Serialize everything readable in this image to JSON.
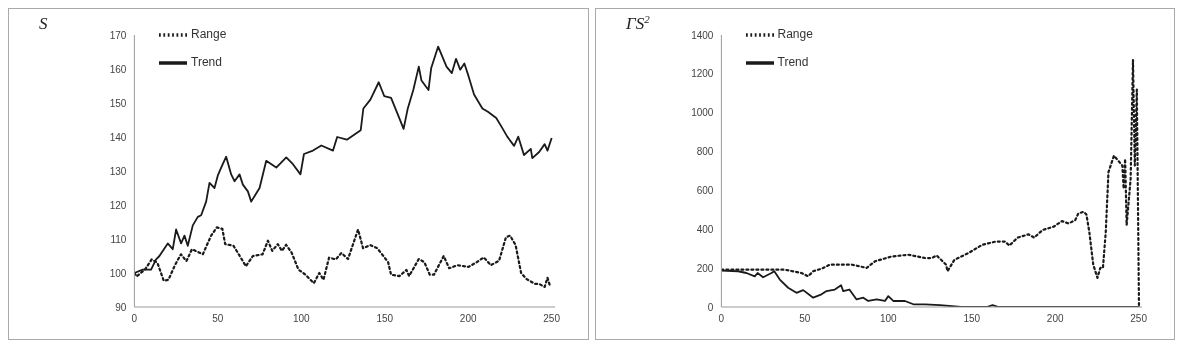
{
  "chart_data": [
    {
      "type": "line",
      "ylabel": "S",
      "xlim": [
        0,
        252
      ],
      "xticks": [
        0,
        50,
        100,
        150,
        200,
        250
      ],
      "ylim": [
        90,
        170
      ],
      "yticks": [
        90,
        100,
        110,
        120,
        130,
        140,
        150,
        160,
        170
      ],
      "grid": false,
      "legend": "top left",
      "marker": "none",
      "series": [
        {
          "name": "Range",
          "color": "#1a1a1a",
          "line_style": "dotted",
          "x": [
            0,
            1.3,
            6.3,
            10.4,
            13.8,
            17.6,
            20.4,
            24.5,
            27.9,
            31.2,
            34.5,
            41,
            46,
            49.4,
            52.7,
            54.4,
            59.4,
            61.9,
            66.8,
            71,
            76.8,
            80,
            82.6,
            85.9,
            88.4,
            90.9,
            94.2,
            98.3,
            102.5,
            107.5,
            110.8,
            113.3,
            116.6,
            120.7,
            124,
            128,
            134,
            137,
            141.4,
            145.5,
            152,
            153.8,
            158.8,
            163,
            164.6,
            170.4,
            173.7,
            177,
            179.5,
            185.3,
            188.6,
            193.6,
            200.2,
            205.2,
            209.3,
            213.5,
            218.5,
            222.6,
            225.1,
            228.4,
            231.7,
            235,
            240,
            242.5,
            245.8,
            247.5,
            249.2
          ],
          "values": [
            100,
            99,
            101,
            104,
            103,
            97.7,
            98,
            102.5,
            105.5,
            103.5,
            107,
            105.5,
            111,
            113.4,
            113,
            108.5,
            108,
            106,
            102,
            105,
            105.5,
            109.5,
            106.5,
            108.5,
            106.5,
            108.3,
            106,
            101,
            99.5,
            97,
            100,
            98,
            104.5,
            104,
            105.9,
            104.1,
            112.8,
            107.3,
            108.2,
            107.3,
            103.2,
            99.5,
            99.1,
            100.9,
            99.1,
            104.1,
            103.2,
            99.5,
            99.5,
            105,
            101.4,
            102.3,
            101.8,
            103.2,
            104.6,
            102.3,
            103.6,
            110.5,
            111,
            108.2,
            100,
            98.2,
            96.8,
            96.8,
            95.9,
            98.6,
            95.9
          ]
        },
        {
          "name": "Trend",
          "color": "#1a1a1a",
          "line_style": "solid",
          "x": [
            0,
            5,
            10,
            13,
            15,
            20,
            23,
            25,
            28,
            30,
            32,
            35,
            38,
            40,
            43,
            45,
            48,
            50,
            52,
            55,
            58,
            60,
            63,
            65,
            68,
            70,
            75,
            79,
            85,
            91,
            95,
            99.5,
            101.6,
            107,
            112,
            119,
            121.5,
            127.3,
            135.6,
            137.2,
            141.4,
            146.4,
            149.7,
            153.8,
            157.2,
            161.3,
            163.8,
            167.1,
            170.4,
            172,
            176.2,
            177.8,
            182,
            187,
            190.2,
            192.7,
            195.2,
            197.7,
            200.2,
            203.5,
            208.5,
            211.8,
            216.8,
            220.1,
            223.4,
            227.5,
            230,
            233.4,
            237.5,
            238.4,
            242.5,
            245.8,
            247.5,
            250
          ],
          "values": [
            100,
            101,
            101,
            104,
            105,
            108.7,
            107,
            112.8,
            108.7,
            111,
            108,
            114,
            116.5,
            117,
            121,
            126.5,
            125,
            128.7,
            131,
            134.2,
            129,
            127,
            129,
            126,
            124,
            121,
            125,
            133,
            131,
            134,
            132,
            129,
            135,
            136,
            137.5,
            136,
            140,
            139.2,
            142,
            148.4,
            151,
            156.1,
            152,
            151.5,
            147.4,
            142.4,
            148.4,
            153.8,
            160.7,
            156.6,
            153.8,
            160.2,
            166.6,
            160.7,
            158.8,
            163,
            159.8,
            161.6,
            157.9,
            152.5,
            148.4,
            147.4,
            145.6,
            142.9,
            140.1,
            137.4,
            140.1,
            134.7,
            136.5,
            133.8,
            135.6,
            137.9,
            136,
            139.7
          ]
        }
      ]
    },
    {
      "type": "line",
      "ylabel": "ΓS$^{2}$",
      "xlim": [
        0,
        252
      ],
      "xticks": [
        0,
        50,
        100,
        150,
        200,
        250
      ],
      "ylim": [
        0,
        1400
      ],
      "yticks": [
        0,
        200,
        400,
        600,
        800,
        1000,
        1200,
        1400
      ],
      "grid": false,
      "legend": "top left",
      "marker": "none",
      "series": [
        {
          "name": "Range",
          "color": "#1a1a1a",
          "line_style": "dotted",
          "x": [
            0,
            38,
            48,
            52,
            55,
            60,
            65,
            78,
            83,
            87,
            92,
            102,
            112,
            122,
            126,
            129,
            134.6,
            135.5,
            139.6,
            147.9,
            156.2,
            164.5,
            170,
            172.5,
            177.5,
            184,
            187.4,
            192.4,
            199,
            204,
            208,
            212,
            213.8,
            217,
            218.7,
            220.4,
            222.8,
            225.3,
            227,
            228.6,
            230.3,
            231.9,
            235.2,
            240.2,
            241,
            241.9,
            242.8,
            245.2,
            246.6,
            247.7,
            248.9,
            250.2
          ],
          "values": [
            192,
            192,
            175,
            158,
            184,
            197,
            218,
            218,
            209,
            201,
            235,
            260,
            269,
            252,
            252,
            265,
            218,
            184,
            243,
            277,
            320,
            337,
            337,
            316,
            357,
            374,
            357,
            396,
            413,
            442,
            430,
            447,
            481,
            490,
            476,
            388,
            218,
            150,
            201,
            201,
            388,
            694,
            779,
            728,
            609,
            762,
            422,
            660,
            1272,
            728,
            1119,
            0
          ]
        },
        {
          "name": "Trend",
          "color": "#1a1a1a",
          "line_style": "solid",
          "x": [
            0,
            10,
            15,
            20,
            21.7,
            25,
            30,
            31.7,
            35,
            40,
            45,
            49,
            55,
            60,
            63,
            68,
            71.7,
            73,
            76.7,
            81,
            85,
            88,
            93,
            98,
            100,
            103,
            110,
            115,
            122,
            131,
            143.6,
            159,
            162.5,
            166,
            250.5
          ],
          "values": [
            187,
            184,
            175,
            158,
            175,
            153,
            175,
            184,
            141,
            99,
            73,
            87,
            48,
            65,
            82,
            90,
            112,
            82,
            90,
            39,
            48,
            31,
            39,
            31,
            56,
            31,
            31,
            14,
            14,
            10,
            0,
            0,
            10,
            0,
            0
          ]
        }
      ]
    }
  ]
}
